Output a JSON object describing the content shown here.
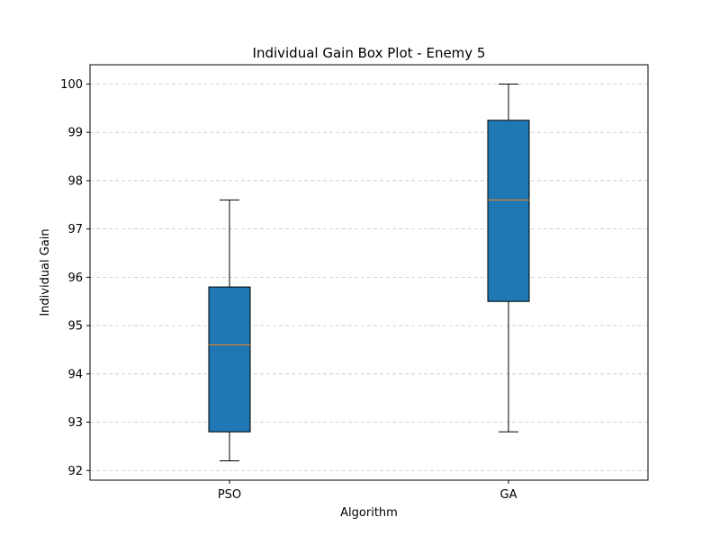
{
  "chart_data": {
    "type": "box",
    "title": "Individual Gain Box Plot - Enemy 5",
    "xlabel": "Algorithm",
    "ylabel": "Individual Gain",
    "categories": [
      "PSO",
      "GA"
    ],
    "boxes": [
      {
        "label": "PSO",
        "whisker_low": 92.2,
        "q1": 92.8,
        "median": 94.6,
        "q3": 95.8,
        "whisker_high": 97.6
      },
      {
        "label": "GA",
        "whisker_low": 92.8,
        "q1": 95.5,
        "median": 97.6,
        "q3": 99.25,
        "whisker_high": 100.0
      }
    ],
    "ylim": [
      91.8,
      100.4
    ],
    "yticks": [
      92,
      93,
      94,
      95,
      96,
      97,
      98,
      99,
      100
    ],
    "grid": "y-dashed",
    "box_color": "#1f77b4",
    "median_color": "#ff7f0e"
  }
}
